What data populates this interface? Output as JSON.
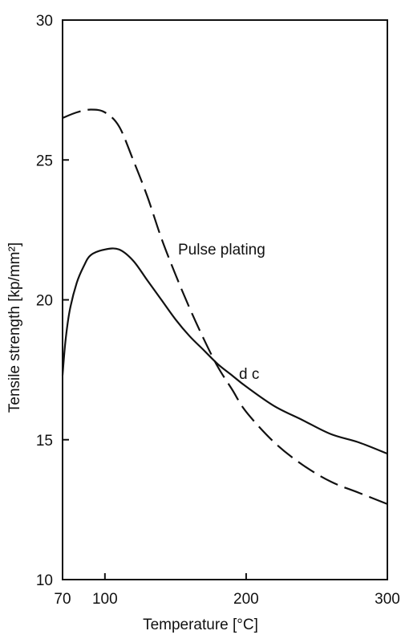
{
  "chart_data": {
    "type": "line",
    "title": "",
    "xlabel": "Temperature [°C]",
    "ylabel": "Tensile strength [kp/mm²]",
    "xlim": [
      70,
      300
    ],
    "ylim": [
      10,
      30
    ],
    "x_ticks": [
      70,
      100,
      200,
      300
    ],
    "y_ticks": [
      10,
      15,
      20,
      25,
      30
    ],
    "grid": false,
    "series": [
      {
        "name": "Pulse plating",
        "line_style": "dashed",
        "x": [
          70,
          80,
          90,
          100,
          110,
          120,
          130,
          140,
          150,
          160,
          170,
          180,
          190,
          200,
          220,
          240,
          260,
          280,
          300
        ],
        "y": [
          26.5,
          26.7,
          26.8,
          26.7,
          26.2,
          25.0,
          23.7,
          22.2,
          20.9,
          19.7,
          18.6,
          17.6,
          16.8,
          16.0,
          14.9,
          14.1,
          13.5,
          13.1,
          12.7
        ]
      },
      {
        "name": "d c",
        "line_style": "solid",
        "x": [
          70,
          72,
          75,
          80,
          85,
          90,
          100,
          110,
          120,
          130,
          140,
          150,
          160,
          170,
          180,
          190,
          200,
          220,
          240,
          260,
          280,
          300
        ],
        "y": [
          17.3,
          18.5,
          19.6,
          20.6,
          21.2,
          21.6,
          21.8,
          21.8,
          21.4,
          20.7,
          20.0,
          19.3,
          18.7,
          18.2,
          17.7,
          17.3,
          16.9,
          16.2,
          15.7,
          15.2,
          14.9,
          14.5
        ]
      }
    ],
    "series_labels": [
      "Pulse plating",
      "d c"
    ]
  }
}
